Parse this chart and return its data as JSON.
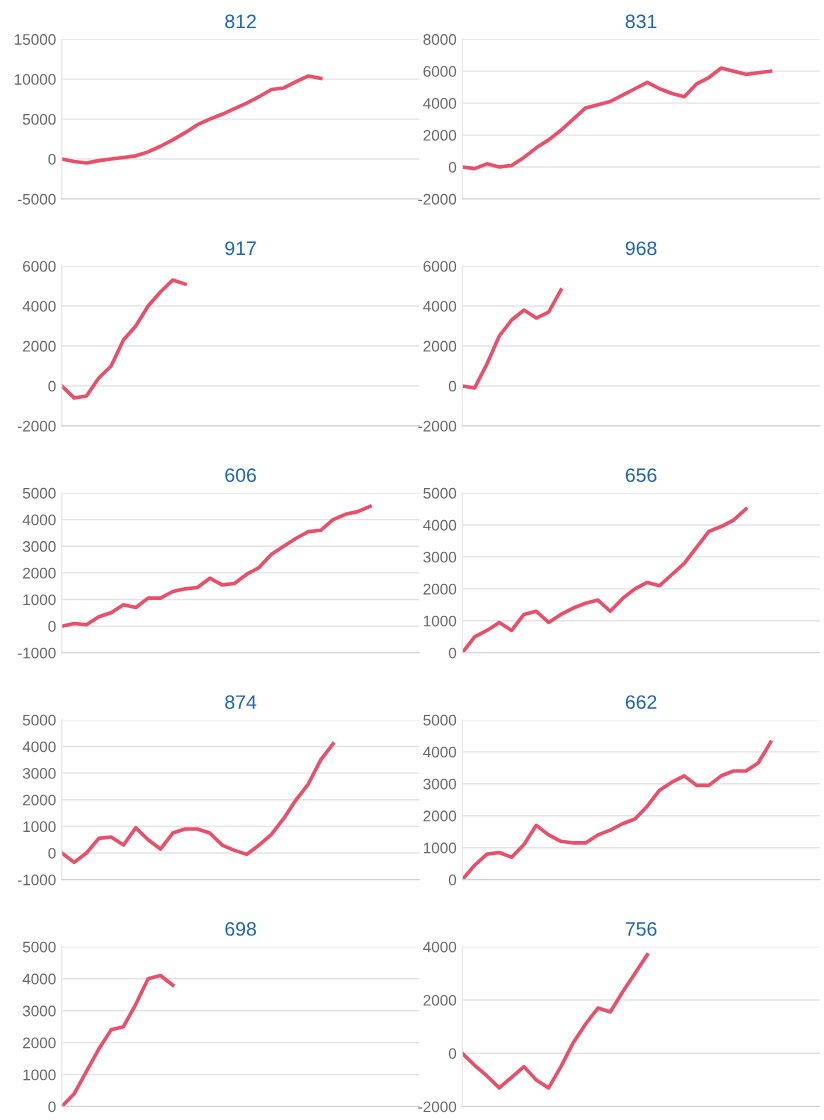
{
  "chart_data": [
    {
      "type": "line",
      "title": "812",
      "categories": [
        null,
        null,
        null,
        null,
        null,
        null,
        null,
        null,
        null,
        null,
        null,
        null,
        null,
        null,
        null,
        null,
        null,
        null,
        null,
        null,
        null,
        null,
        null,
        null,
        null,
        null,
        null,
        null,
        null,
        null
      ],
      "series": [
        {
          "color": "#e8506a",
          "values": [
            0,
            -300,
            -500,
            -200,
            0,
            200,
            400,
            900,
            1600,
            2400,
            3300,
            4300,
            5000,
            5600,
            6300,
            7000,
            7800,
            8700,
            8900,
            9700,
            10400,
            10100,
            null,
            null,
            null,
            null,
            null,
            null,
            null,
            null
          ]
        }
      ],
      "ylim": [
        -5000,
        15000
      ],
      "yticks": [
        -5000,
        0,
        5000,
        10000,
        15000
      ],
      "grid": "y",
      "tick_labels": "y",
      "marker": "none",
      "line_style": "solid"
    },
    {
      "type": "line",
      "title": "831",
      "categories": [
        null,
        null,
        null,
        null,
        null,
        null,
        null,
        null,
        null,
        null,
        null,
        null,
        null,
        null,
        null,
        null,
        null,
        null,
        null,
        null,
        null,
        null,
        null,
        null,
        null,
        null,
        null,
        null,
        null,
        null
      ],
      "series": [
        {
          "color": "#e8506a",
          "values": [
            0,
            -100,
            200,
            0,
            100,
            600,
            1200,
            1700,
            2300,
            3000,
            3700,
            3900,
            4100,
            4500,
            4900,
            5300,
            4900,
            4600,
            4400,
            5200,
            5600,
            6200,
            6000,
            5800,
            5900,
            6000,
            null,
            null,
            null,
            null
          ]
        }
      ],
      "ylim": [
        -2000,
        8000
      ],
      "yticks": [
        -2000,
        0,
        2000,
        4000,
        6000,
        8000
      ],
      "grid": "y",
      "tick_labels": "y",
      "marker": "none",
      "line_style": "solid"
    },
    {
      "type": "line",
      "title": "917",
      "categories": [
        null,
        null,
        null,
        null,
        null,
        null,
        null,
        null,
        null,
        null,
        null,
        null,
        null,
        null,
        null,
        null,
        null,
        null,
        null,
        null,
        null,
        null,
        null,
        null,
        null,
        null,
        null,
        null,
        null,
        null
      ],
      "series": [
        {
          "color": "#e8506a",
          "values": [
            0,
            -600,
            -500,
            400,
            1000,
            2300,
            3000,
            4000,
            4700,
            5300,
            5100,
            null,
            null,
            null,
            null,
            null,
            null,
            null,
            null,
            null,
            null,
            null,
            null,
            null,
            null,
            null,
            null,
            null,
            null,
            null
          ]
        }
      ],
      "ylim": [
        -2000,
        6000
      ],
      "yticks": [
        -2000,
        0,
        2000,
        4000,
        6000
      ],
      "grid": "y",
      "tick_labels": "y",
      "marker": "none",
      "line_style": "solid"
    },
    {
      "type": "line",
      "title": "968",
      "categories": [
        null,
        null,
        null,
        null,
        null,
        null,
        null,
        null,
        null,
        null,
        null,
        null,
        null,
        null,
        null,
        null,
        null,
        null,
        null,
        null,
        null,
        null,
        null,
        null,
        null,
        null,
        null,
        null,
        null,
        null
      ],
      "series": [
        {
          "color": "#e8506a",
          "values": [
            0,
            -100,
            1100,
            2500,
            3300,
            3800,
            3400,
            3700,
            4800,
            null,
            null,
            null,
            null,
            null,
            null,
            null,
            null,
            null,
            null,
            null,
            null,
            null,
            null,
            null,
            null,
            null,
            null,
            null,
            null,
            null
          ]
        }
      ],
      "ylim": [
        -2000,
        6000
      ],
      "yticks": [
        -2000,
        0,
        2000,
        4000,
        6000
      ],
      "grid": "y",
      "tick_labels": "y",
      "marker": "none",
      "line_style": "solid"
    },
    {
      "type": "line",
      "title": "606",
      "categories": [
        null,
        null,
        null,
        null,
        null,
        null,
        null,
        null,
        null,
        null,
        null,
        null,
        null,
        null,
        null,
        null,
        null,
        null,
        null,
        null,
        null,
        null,
        null,
        null,
        null,
        null,
        null,
        null,
        null,
        null
      ],
      "series": [
        {
          "color": "#e8506a",
          "values": [
            0,
            100,
            50,
            350,
            500,
            800,
            700,
            1050,
            1050,
            1300,
            1400,
            1450,
            1800,
            1550,
            1600,
            1950,
            2200,
            2700,
            3000,
            3300,
            3550,
            3600,
            4000,
            4200,
            4300,
            4500,
            null,
            null,
            null,
            null
          ]
        }
      ],
      "ylim": [
        -1000,
        5000
      ],
      "yticks": [
        -1000,
        0,
        1000,
        2000,
        3000,
        4000,
        5000
      ],
      "grid": "y",
      "tick_labels": "y",
      "marker": "none",
      "line_style": "solid"
    },
    {
      "type": "line",
      "title": "656",
      "categories": [
        null,
        null,
        null,
        null,
        null,
        null,
        null,
        null,
        null,
        null,
        null,
        null,
        null,
        null,
        null,
        null,
        null,
        null,
        null,
        null,
        null,
        null,
        null,
        null,
        null,
        null,
        null,
        null,
        null,
        null
      ],
      "series": [
        {
          "color": "#e8506a",
          "values": [
            0,
            500,
            700,
            950,
            700,
            1200,
            1300,
            950,
            1200,
            1400,
            1550,
            1650,
            1300,
            1700,
            2000,
            2200,
            2100,
            2450,
            2800,
            3300,
            3800,
            3950,
            4150,
            4500,
            null,
            null,
            null,
            null,
            null,
            null
          ]
        }
      ],
      "ylim": [
        0,
        5000
      ],
      "yticks": [
        0,
        1000,
        2000,
        3000,
        4000,
        5000
      ],
      "grid": "y",
      "tick_labels": "y",
      "marker": "none",
      "line_style": "solid"
    },
    {
      "type": "line",
      "title": "874",
      "categories": [
        null,
        null,
        null,
        null,
        null,
        null,
        null,
        null,
        null,
        null,
        null,
        null,
        null,
        null,
        null,
        null,
        null,
        null,
        null,
        null,
        null,
        null,
        null,
        null,
        null,
        null,
        null,
        null,
        null,
        null
      ],
      "series": [
        {
          "color": "#e8506a",
          "values": [
            0,
            -350,
            0,
            550,
            600,
            300,
            950,
            500,
            150,
            750,
            900,
            900,
            750,
            300,
            100,
            -50,
            300,
            700,
            1300,
            2000,
            2600,
            3500,
            4100,
            null,
            null,
            null,
            null,
            null,
            null,
            null
          ]
        }
      ],
      "ylim": [
        -1000,
        5000
      ],
      "yticks": [
        -1000,
        0,
        1000,
        2000,
        3000,
        4000,
        5000
      ],
      "grid": "y",
      "tick_labels": "y",
      "marker": "none",
      "line_style": "solid"
    },
    {
      "type": "line",
      "title": "662",
      "categories": [
        null,
        null,
        null,
        null,
        null,
        null,
        null,
        null,
        null,
        null,
        null,
        null,
        null,
        null,
        null,
        null,
        null,
        null,
        null,
        null,
        null,
        null,
        null,
        null,
        null,
        null,
        null,
        null,
        null,
        null
      ],
      "series": [
        {
          "color": "#e8506a",
          "values": [
            0,
            450,
            800,
            850,
            700,
            1100,
            1700,
            1400,
            1200,
            1150,
            1150,
            1400,
            1550,
            1750,
            1900,
            2300,
            2800,
            3050,
            3250,
            2950,
            2950,
            3250,
            3400,
            3400,
            3650,
            4300,
            null,
            null,
            null,
            null
          ]
        }
      ],
      "ylim": [
        0,
        5000
      ],
      "yticks": [
        0,
        1000,
        2000,
        3000,
        4000,
        5000
      ],
      "grid": "y",
      "tick_labels": "y",
      "marker": "none",
      "line_style": "solid"
    },
    {
      "type": "line",
      "title": "698",
      "categories": [
        null,
        null,
        null,
        null,
        null,
        null,
        null,
        null,
        null,
        null,
        null,
        null,
        null,
        null,
        null,
        null,
        null,
        null,
        null,
        null,
        null,
        null,
        null,
        null,
        null,
        null,
        null,
        null,
        null,
        null
      ],
      "series": [
        {
          "color": "#e8506a",
          "values": [
            0,
            400,
            1100,
            1800,
            2400,
            2500,
            3200,
            4000,
            4100,
            3800,
            null,
            null,
            null,
            null,
            null,
            null,
            null,
            null,
            null,
            null,
            null,
            null,
            null,
            null,
            null,
            null,
            null,
            null,
            null,
            null
          ]
        }
      ],
      "ylim": [
        0,
        5000
      ],
      "yticks": [
        0,
        1000,
        2000,
        3000,
        4000,
        5000
      ],
      "grid": "y",
      "tick_labels": "y",
      "marker": "none",
      "line_style": "solid"
    },
    {
      "type": "line",
      "title": "756",
      "categories": [
        null,
        null,
        null,
        null,
        null,
        null,
        null,
        null,
        null,
        null,
        null,
        null,
        null,
        null,
        null,
        null,
        null,
        null,
        null,
        null,
        null,
        null,
        null,
        null,
        null,
        null,
        null,
        null,
        null,
        null
      ],
      "series": [
        {
          "color": "#e8506a",
          "values": [
            0,
            -450,
            -850,
            -1300,
            -900,
            -500,
            -1000,
            -1300,
            -500,
            400,
            1100,
            1700,
            1550,
            2300,
            3000,
            3700,
            null,
            null,
            null,
            null,
            null,
            null,
            null,
            null,
            null,
            null,
            null,
            null,
            null,
            null
          ]
        }
      ],
      "ylim": [
        -2000,
        4000
      ],
      "yticks": [
        -2000,
        0,
        2000,
        4000
      ],
      "grid": "y",
      "tick_labels": "y",
      "marker": "none",
      "line_style": "solid"
    }
  ]
}
